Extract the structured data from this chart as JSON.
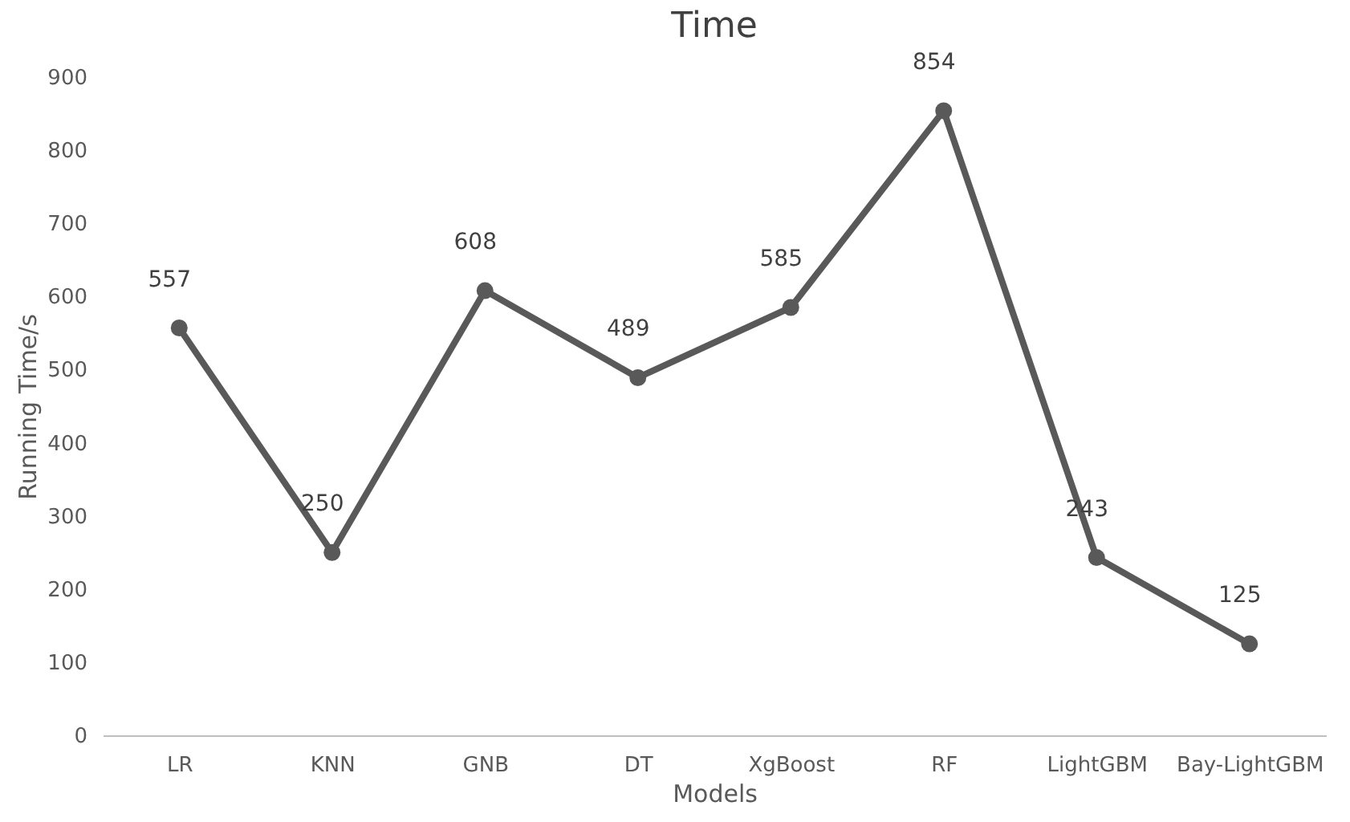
{
  "chart_data": {
    "type": "line",
    "title": "Time",
    "xlabel": "Models",
    "ylabel": "Running Time/s",
    "categories": [
      "LR",
      "KNN",
      "GNB",
      "DT",
      "XgBoost",
      "RF",
      "LightGBM",
      "Bay-LightGBM"
    ],
    "series": [
      {
        "color": "#595959",
        "values": [
          557,
          250,
          608,
          489,
          585,
          854,
          243,
          125
        ]
      }
    ],
    "ylim": [
      0,
      900
    ],
    "yticks": [
      0,
      100,
      200,
      300,
      400,
      500,
      600,
      700,
      800,
      900
    ],
    "data_labels": true,
    "marker": "circle",
    "line_style": "solid",
    "grid": false
  }
}
